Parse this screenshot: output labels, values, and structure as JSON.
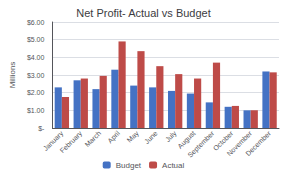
{
  "chart_data": {
    "type": "bar",
    "title": "Net Profit- Actual vs Budget",
    "ylabel": "Millions",
    "categories": [
      "January",
      "February",
      "March",
      "April",
      "May",
      "June",
      "July",
      "August",
      "September",
      "October",
      "November",
      "December"
    ],
    "series": [
      {
        "name": "Budget",
        "color": "#4472C4",
        "values": [
          2.3,
          2.7,
          2.2,
          3.3,
          2.4,
          2.3,
          2.1,
          1.95,
          1.45,
          1.2,
          1.0,
          3.2
        ]
      },
      {
        "name": "Actual",
        "color": "#BE4B48",
        "values": [
          1.75,
          2.8,
          2.95,
          4.9,
          4.35,
          3.5,
          3.05,
          2.8,
          3.7,
          1.25,
          1.0,
          3.15
        ]
      }
    ],
    "ylim": [
      0,
      6.0
    ],
    "yticks": [
      {
        "value": 0,
        "label": "$-"
      },
      {
        "value": 1.0,
        "label": "$1.00"
      },
      {
        "value": 2.0,
        "label": "$2.00"
      },
      {
        "value": 3.0,
        "label": "$3.00"
      },
      {
        "value": 4.0,
        "label": "$4.00"
      },
      {
        "value": 5.0,
        "label": "$5.00"
      },
      {
        "value": 6.0,
        "label": "$6.00"
      }
    ],
    "grid": true,
    "legend": "bottom"
  }
}
